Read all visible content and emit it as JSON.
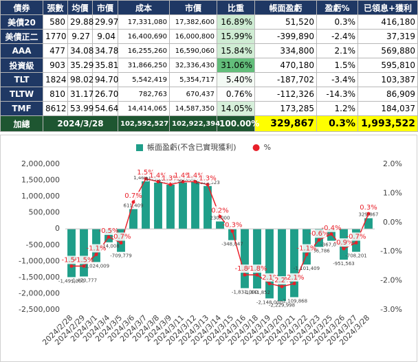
{
  "table": {
    "header": [
      "債券",
      "張數",
      "均價",
      "市價",
      "成本",
      "市價",
      "比重",
      "帳面盈虧",
      "盈虧%",
      "已領息+獲利"
    ],
    "rows": [
      [
        "美債20",
        "580",
        "29.88",
        "29.97",
        "17,331,080",
        "17,382,600",
        "16.89%",
        "51,520",
        "0.3%",
        "416,180"
      ],
      [
        "美債正二",
        "1770",
        "9.27",
        "9.04",
        "16,400,690",
        "16,000,800",
        "15.99%",
        "-399,890",
        "-2.4%",
        "37,319"
      ],
      [
        "AAA",
        "477",
        "34.08",
        "34.78",
        "16,255,260",
        "16,590,060",
        "15.84%",
        "334,800",
        "2.1%",
        "569,880"
      ],
      [
        "投資級",
        "903",
        "35.29",
        "35.81",
        "31,866,250",
        "32,336,430",
        "31.06%",
        "470,180",
        "1.5%",
        "595,810"
      ],
      [
        "TLT",
        "1824",
        "98.02",
        "94.70",
        "5,542,419",
        "5,354,717",
        "5.40%",
        "-187,702",
        "-3.4%",
        "103,387"
      ],
      [
        "TLTW",
        "810",
        "31.17",
        "26.70",
        "782,763",
        "670,437",
        "0.76%",
        "-112,326",
        "-14.3%",
        "86,909"
      ],
      [
        "TMF",
        "8612",
        "53.99",
        "54.64",
        "14,414,065",
        "14,587,350",
        "14.05%",
        "173,285",
        "1.2%",
        "184,037"
      ]
    ],
    "total": [
      "加總",
      "2024/3/28",
      "102,592,527",
      "102,922,394",
      "100.00%",
      "329,867",
      "0.3%",
      "1,993,522"
    ]
  },
  "chart_data": {
    "type": "combo",
    "categories": [
      "2024/2/28",
      "2024/2/29",
      "2024/3/1",
      "2024/3/4",
      "2024/3/5",
      "2024/3/6",
      "2024/3/7",
      "2024/3/8",
      "2024/3/9",
      "2024/3/11",
      "2024/3/12",
      "2024/3/13",
      "2024/3/14",
      "2024/3/15",
      "2024/3/16",
      "2024/3/18",
      "2024/3/19",
      "2024/3/20",
      "2024/3/21",
      "2024/3/22",
      "2024/3/23",
      "2024/3/25",
      "2024/3/26",
      "2024/3/27",
      "2024/3/28"
    ],
    "series": [
      {
        "name": "帳面盈虧(不含已實現獲利)",
        "type": "bar",
        "color": "#1f9e89",
        "values": [
          -1491000,
          -1470777,
          -1024009,
          -414008,
          -709779,
          611409,
          1469000,
          1430000,
          1365000,
          1430000,
          1465667,
          1325523,
          230000,
          -348047,
          -1831000,
          -1841852,
          -2148000,
          -2229998,
          -2109868,
          -1101409,
          -556786,
          -367000,
          -951563,
          -708201,
          329867
        ],
        "value_labels": [
          "-1,491,000",
          "-1,470,777",
          "-1,024,009",
          "-414,008",
          "-709,779",
          "611,409",
          "1,469,000",
          "1,430,000",
          "1,365,000",
          "1,430,000",
          "1,465,667",
          "1,325,523",
          "230,000",
          "-348,047",
          "-1,831,000",
          "-1,841,852",
          "-2,148,000",
          "-2,229,998",
          "-2,109,868",
          "-1,101,409",
          "-556,786",
          "-367,000",
          "-951,563",
          "-708,201",
          "329,867"
        ]
      },
      {
        "name": "%",
        "type": "line",
        "axis": "y2",
        "color": "#e8202a",
        "values": [
          -1.5,
          -1.5,
          -1.1,
          -0.5,
          -0.7,
          0.7,
          1.5,
          1.4,
          1.3,
          1.4,
          1.4,
          1.3,
          0.2,
          -0.3,
          -1.8,
          -1.8,
          -2.1,
          -2.2,
          -2.1,
          -1.1,
          -0.6,
          -0.4,
          -0.9,
          -0.7,
          0.3
        ],
        "value_labels": [
          "-1.5%",
          "-1.5%",
          "-1.1%",
          "-0.5%",
          "-0.7%",
          "0.7%",
          "1.5%",
          "1.4%",
          "1.3%",
          "1.4%",
          "1.4%",
          "1.3%",
          "0.2%",
          "-0.3%",
          "-1.8%",
          "-1.8%",
          "-2.1%",
          "-2.2%",
          "-2.1%",
          "-1.1%",
          "-0.6%",
          "-0.4%",
          "-0.9%",
          "-0.7%",
          "0.3%"
        ]
      }
    ],
    "ylim": [
      -2500000,
      2000000
    ],
    "yticks": [
      {
        "value": -2500000,
        "label": "-2,500,000"
      },
      {
        "value": -2000000,
        "label": "-2,000,000"
      },
      {
        "value": -1500000,
        "label": "-1,500,000"
      },
      {
        "value": -1000000,
        "label": "-1,000,000"
      },
      {
        "value": -500000,
        "label": "-500,000"
      },
      0,
      {
        "value": 500000,
        "label": "500,000"
      },
      {
        "value": 1000000,
        "label": "1,000,000"
      },
      {
        "value": 1500000,
        "label": "1,500,000"
      },
      {
        "value": 2000000,
        "label": "2,000,000"
      }
    ],
    "y2lim": [
      -3,
      2
    ],
    "y2ticks": [
      {
        "value": -3,
        "label": "-3.0%"
      },
      {
        "value": -2,
        "label": "-2.0%"
      },
      {
        "value": -1,
        "label": "-1.0%"
      },
      {
        "value": 0,
        "label": "0.0%"
      },
      {
        "value": 1,
        "label": "1.0%"
      },
      {
        "value": 2,
        "label": "2.0%"
      }
    ],
    "grid": false,
    "legend": "top"
  }
}
